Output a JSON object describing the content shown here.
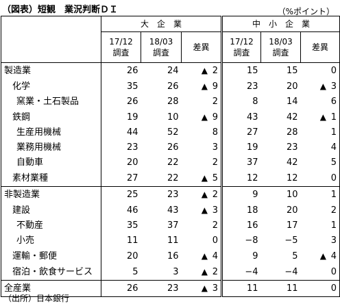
{
  "title": "（図表）短観　業況判断ＤＩ",
  "unit": "（%ポイント）",
  "source": "（出所）日本銀行",
  "groups": {
    "large": "大　企　業",
    "small": "中　小　企　業"
  },
  "columns": {
    "c1_line1": "17/12",
    "c1_line2": "調査",
    "c2_line1": "18/03",
    "c2_line2": "調査",
    "diff": "差異"
  },
  "triangle": "▲",
  "rows": [
    {
      "name": "製造業",
      "l1": "26",
      "l2": "24",
      "ld": "2",
      "lt": true,
      "s1": "15",
      "s2": "15",
      "sd": "0",
      "st": false
    },
    {
      "name": "化学",
      "l1": "35",
      "l2": "26",
      "ld": "9",
      "lt": true,
      "s1": "23",
      "s2": "20",
      "sd": "3",
      "st": true
    },
    {
      "name": "窯業・土石製品",
      "l1": "26",
      "l2": "28",
      "ld": "2",
      "lt": false,
      "s1": "8",
      "s2": "14",
      "sd": "6",
      "st": false
    },
    {
      "name": "鉄鋼",
      "l1": "19",
      "l2": "10",
      "ld": "9",
      "lt": true,
      "s1": "43",
      "s2": "42",
      "sd": "1",
      "st": true
    },
    {
      "name": "生産用機械",
      "l1": "44",
      "l2": "52",
      "ld": "8",
      "lt": false,
      "s1": "27",
      "s2": "28",
      "sd": "1",
      "st": false
    },
    {
      "name": "業務用機械",
      "l1": "23",
      "l2": "26",
      "ld": "3",
      "lt": false,
      "s1": "19",
      "s2": "23",
      "sd": "4",
      "st": false
    },
    {
      "name": "自動車",
      "l1": "20",
      "l2": "22",
      "ld": "2",
      "lt": false,
      "s1": "37",
      "s2": "42",
      "sd": "5",
      "st": false
    },
    {
      "name": "素材業種",
      "l1": "27",
      "l2": "22",
      "ld": "5",
      "lt": true,
      "s1": "12",
      "s2": "12",
      "sd": "0",
      "st": false
    },
    {
      "name": "非製造業",
      "l1": "25",
      "l2": "23",
      "ld": "2",
      "lt": true,
      "s1": "9",
      "s2": "10",
      "sd": "1",
      "st": false
    },
    {
      "name": "建設",
      "l1": "46",
      "l2": "43",
      "ld": "3",
      "lt": true,
      "s1": "18",
      "s2": "20",
      "sd": "2",
      "st": false
    },
    {
      "name": "不動産",
      "l1": "35",
      "l2": "37",
      "ld": "2",
      "lt": false,
      "s1": "16",
      "s2": "17",
      "sd": "1",
      "st": false
    },
    {
      "name": "小売",
      "l1": "11",
      "l2": "11",
      "ld": "0",
      "lt": false,
      "s1": "−8",
      "s2": "−5",
      "sd": "3",
      "st": false
    },
    {
      "name": "運輸・郵便",
      "l1": "20",
      "l2": "16",
      "ld": "4",
      "lt": true,
      "s1": "9",
      "s2": "5",
      "sd": "4",
      "st": true
    },
    {
      "name": "宿泊・飲食サービス",
      "l1": "5",
      "l2": "3",
      "ld": "2",
      "lt": true,
      "s1": "−4",
      "s2": "−4",
      "sd": "0",
      "st": false
    },
    {
      "name": "全産業",
      "l1": "26",
      "l2": "23",
      "ld": "3",
      "lt": true,
      "s1": "11",
      "s2": "11",
      "sd": "0",
      "st": false
    }
  ]
}
